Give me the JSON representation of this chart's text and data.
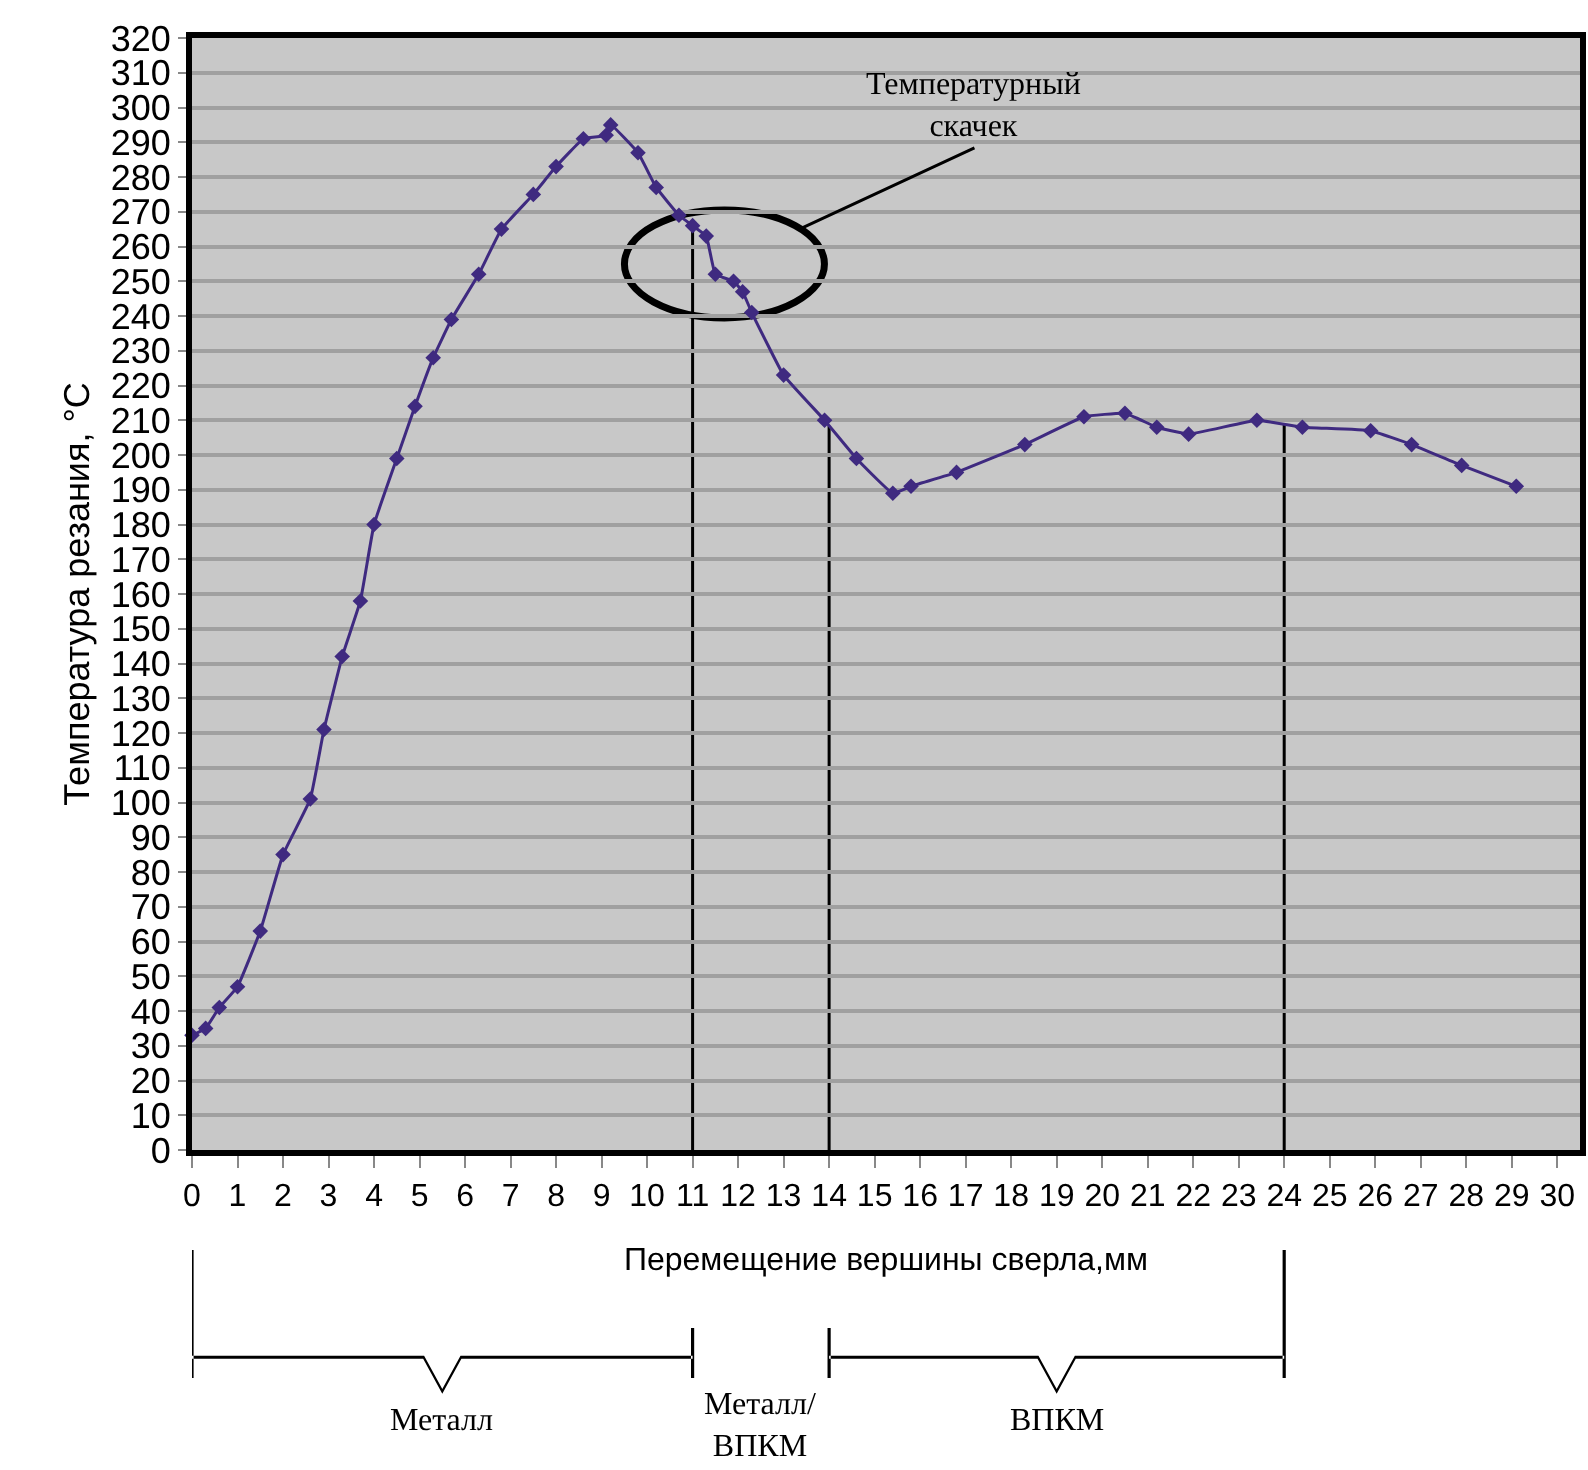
{
  "chart_data": {
    "type": "line",
    "xlabel": "Перемещение вершины сверла,мм",
    "ylabel": "Температура резания, °C",
    "x": [
      0,
      0.3,
      0.6,
      1.0,
      1.5,
      2.0,
      2.6,
      2.9,
      3.3,
      3.7,
      4.0,
      4.5,
      4.9,
      5.3,
      5.7,
      6.3,
      6.8,
      7.5,
      8.0,
      8.6,
      9.1,
      9.2,
      9.8,
      10.2,
      10.7,
      11.0,
      11.3,
      11.5,
      11.9,
      12.1,
      12.3,
      13.0,
      13.9,
      14.6,
      15.4,
      15.8,
      16.8,
      18.3,
      19.6,
      20.5,
      21.2,
      21.9,
      23.4,
      24.4,
      25.9,
      26.8,
      27.9,
      29.1
    ],
    "series": [
      {
        "color": "#3f2a80",
        "values": [
          33,
          35,
          41,
          47,
          63,
          85,
          101,
          121,
          142,
          158,
          180,
          199,
          214,
          228,
          239,
          252,
          265,
          275,
          283,
          291,
          292,
          295,
          287,
          277,
          269,
          266,
          263,
          252,
          250,
          247,
          241,
          223,
          210,
          199,
          189,
          191,
          195,
          203,
          211,
          212,
          208,
          206,
          210,
          208,
          207,
          203,
          197,
          191
        ]
      }
    ],
    "xlim": [
      0,
      30.5
    ],
    "xticks": [
      0,
      1,
      2,
      3,
      4,
      5,
      6,
      7,
      8,
      9,
      10,
      11,
      12,
      13,
      14,
      15,
      16,
      17,
      18,
      19,
      20,
      21,
      22,
      23,
      24,
      25,
      26,
      27,
      28,
      29,
      30
    ],
    "ylim": [
      0,
      320
    ],
    "yticks": [
      0,
      10,
      20,
      30,
      40,
      50,
      60,
      70,
      80,
      90,
      100,
      110,
      120,
      130,
      140,
      150,
      160,
      170,
      180,
      190,
      200,
      210,
      220,
      230,
      240,
      250,
      260,
      270,
      280,
      290,
      300,
      310,
      320
    ],
    "grid": "y",
    "marker": "diamond",
    "line_style": "solid",
    "ref_lines": [
      {
        "axis": "x",
        "value": 11,
        "color": "#000000"
      },
      {
        "axis": "x",
        "value": 14,
        "color": "#000000"
      },
      {
        "axis": "x",
        "value": 24,
        "color": "#000000"
      }
    ],
    "annotations": [
      {
        "text": "Температурный\nскачек",
        "x": 11.7,
        "y": 255
      },
      "Металл",
      "Металл/\nВПКМ",
      "ВПКМ"
    ]
  }
}
